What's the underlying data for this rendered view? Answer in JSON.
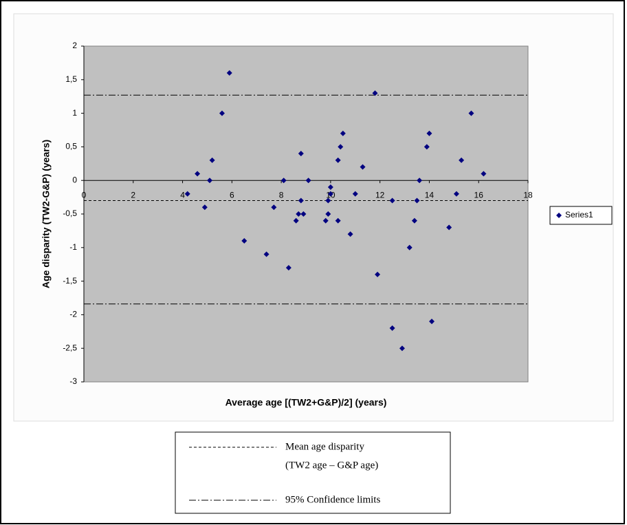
{
  "chart_data": {
    "type": "scatter",
    "x_label": "Average age [(TW2+G&P)/2] (years)",
    "y_label": "Age disparity (TW2-G&P) (years)",
    "xlim": [
      0,
      18
    ],
    "xticks": [
      0,
      2,
      4,
      6,
      8,
      10,
      12,
      14,
      16,
      18
    ],
    "ylim": [
      -3,
      2
    ],
    "yticks": [
      -3,
      {
        "value": -2.5,
        "label": "-2,5"
      },
      -2,
      {
        "value": -1.5,
        "label": "-1,5"
      },
      -1,
      {
        "value": -0.5,
        "label": "-0,5"
      },
      0,
      {
        "value": 0.5,
        "label": "0,5"
      },
      1,
      {
        "value": 1.5,
        "label": "1,5"
      },
      2
    ],
    "legend": "right",
    "series": [
      {
        "name": "Series1",
        "color": "#000080",
        "x": [
          4.2,
          4.6,
          4.9,
          5.1,
          5.2,
          5.6,
          5.9,
          6.5,
          7.4,
          7.7,
          8.1,
          8.3,
          8.6,
          8.7,
          8.8,
          8.8,
          8.9,
          9.1,
          9.8,
          9.9,
          10.0,
          9.9,
          10.0,
          10.3,
          10.4,
          10.3,
          10.5,
          10.8,
          11.0,
          11.3,
          11.8,
          11.9,
          12.5,
          12.5,
          12.9,
          13.2,
          13.4,
          13.5,
          13.6,
          13.9,
          14.0,
          14.1,
          14.8,
          15.1,
          15.3,
          15.7,
          16.2
        ],
        "values": [
          -0.2,
          0.1,
          -0.4,
          0,
          0.3,
          1.0,
          1.6,
          -0.9,
          -1.1,
          -0.4,
          0,
          -1.3,
          -0.6,
          -0.5,
          -0.3,
          0.4,
          -0.5,
          0,
          -0.6,
          -0.5,
          -0.1,
          -0.3,
          -0.2,
          0.3,
          0.5,
          -0.6,
          0.7,
          -0.8,
          -0.2,
          0.2,
          1.3,
          -1.4,
          -0.3,
          -2.2,
          -2.5,
          -1.0,
          -0.6,
          -0.3,
          0,
          0.5,
          0.7,
          -2.1,
          -0.7,
          -0.2,
          0.3,
          1.0,
          0.1
        ]
      }
    ],
    "reference_lines": [
      {
        "label_lines": [
          "Mean age disparity",
          "(TW2 age – G&P age)"
        ],
        "values": [
          -0.3
        ],
        "style": "dashed"
      },
      {
        "label_lines": [
          "95% Confidence limits"
        ],
        "values": [
          1.27,
          -1.84
        ],
        "style": "dashdot"
      }
    ]
  }
}
